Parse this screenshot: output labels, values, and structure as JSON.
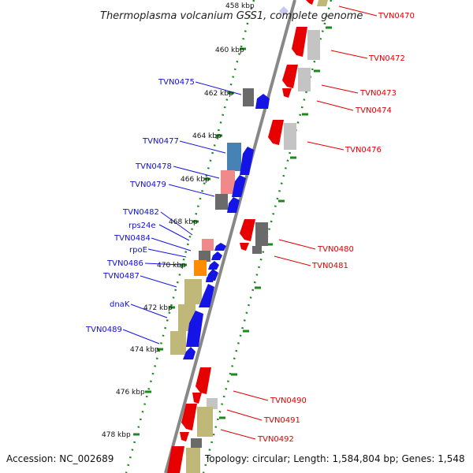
{
  "title": "Thermoplasma volcanium GSS1, complete genome",
  "accession": "Accession: NC_002689",
  "topology": "Topology: circular; Length: 1,584,804 bp; Genes: 1,548",
  "scale_labels": [
    "458 kbp",
    "460 kbp",
    "462 kbp",
    "464 kbp",
    "466 kbp",
    "468 kbp",
    "470 kbp",
    "472 kbp",
    "474 kbp",
    "476 kbp",
    "478 kbp"
  ],
  "left_genes": [
    "TVN0475",
    "TVN0477",
    "TVN0478",
    "TVN0479",
    "TVN0482",
    "rps24e",
    "TVN0484",
    "rpoE",
    "TVN0486",
    "TVN0487",
    "dnaK",
    "TVN0489"
  ],
  "right_genes": [
    "TVN0470",
    "TVN0472",
    "TVN0473",
    "TVN0474",
    "TVN0476",
    "TVN0480",
    "TVN0481",
    "TVN0490",
    "TVN0491",
    "TVN0492"
  ],
  "colors": {
    "forward": "#1414e6",
    "reverse": "#e60000",
    "backbone": "#888888",
    "scale": "#1a8a1a",
    "grey": "#707070",
    "light_grey": "#c4c4c4",
    "pink": "#f08a8a",
    "orange": "#ff8c00",
    "khaki": "#c0b878",
    "steel": "#4682b4"
  }
}
